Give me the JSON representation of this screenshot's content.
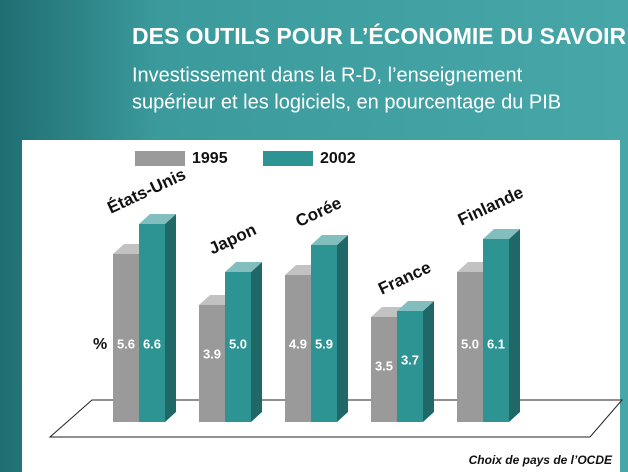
{
  "chart_data": {
    "type": "bar3d",
    "title": "DES OUTILS POUR L’ÉCONOMIE DU SAVOIR",
    "subtitle": [
      "Investissement dans la R-D, l’enseignement",
      "supérieur et les logiciels, en pourcentage du PIB"
    ],
    "unit_label": "%",
    "source": "Choix de pays de l’OCDE",
    "categories": [
      "États-Unis",
      "Japon",
      "Corée",
      "France",
      "Finlande"
    ],
    "series": [
      {
        "name": "1995",
        "color": "#9a9a9a",
        "values": [
          5.6,
          3.9,
          4.9,
          3.5,
          5.0
        ],
        "value_labels": [
          "5.6",
          "3.9",
          "4.9",
          "3.5",
          "5.0"
        ]
      },
      {
        "name": "2002",
        "color": "#2e9393",
        "values": [
          6.6,
          5.0,
          5.9,
          3.7,
          6.1
        ],
        "value_labels": [
          "6.6",
          "5.0",
          "5.9",
          "3.7",
          "6.1"
        ]
      }
    ]
  }
}
